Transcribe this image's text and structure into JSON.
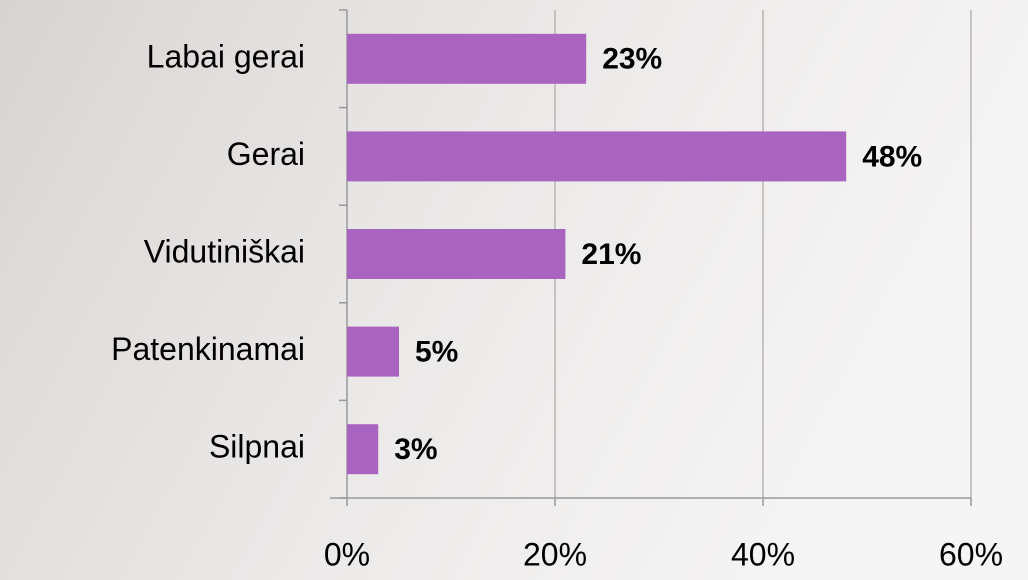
{
  "chart_data": {
    "type": "bar",
    "orientation": "horizontal",
    "categories": [
      "Labai gerai",
      "Gerai",
      "Vidutiniškai",
      "Patenkinamai",
      "Silpnai"
    ],
    "values": [
      23,
      48,
      21,
      5,
      3
    ],
    "value_labels": [
      "23%",
      "48%",
      "21%",
      "5%",
      "3%"
    ],
    "color": "#a864bf",
    "xlim": [
      0,
      60
    ],
    "xticks": [
      {
        "value": 0,
        "label": "0%"
      },
      {
        "value": 20,
        "label": "20%"
      },
      {
        "value": 40,
        "label": "40%"
      },
      {
        "value": 60,
        "label": "60%"
      }
    ],
    "grid": true
  }
}
